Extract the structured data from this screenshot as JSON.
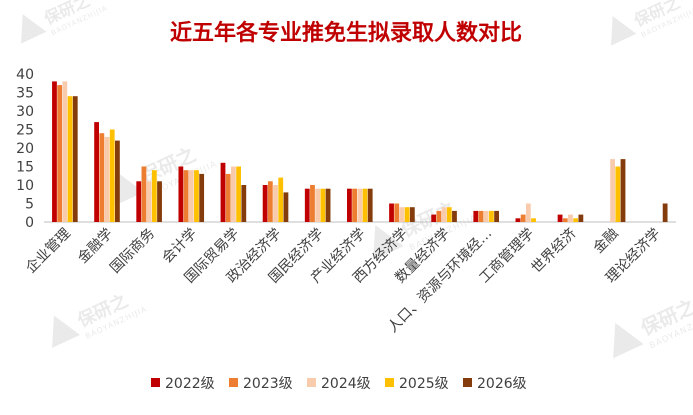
{
  "chart_data": {
    "type": "bar",
    "title": "近五年各专业推免生拟录取人数对比",
    "xlabel": "",
    "ylabel": "",
    "ylim": [
      0,
      40
    ],
    "y_ticks": [
      0,
      5,
      10,
      15,
      20,
      25,
      30,
      35,
      40
    ],
    "grid": false,
    "legend_position": "bottom",
    "categories": [
      "企业管理",
      "金融学",
      "国际商务",
      "会计学",
      "国际贸易学",
      "政治经济学",
      "国民经济学",
      "产业经济学",
      "西方经济学",
      "数量经济学",
      "人口、资源与环境经…",
      "工商管理学",
      "世界经济",
      "金融",
      "理论经济学"
    ],
    "series": [
      {
        "name": "2022级",
        "color": "#C00000",
        "values": [
          38,
          27,
          11,
          15,
          16,
          10,
          9,
          9,
          5,
          2,
          3,
          1,
          2,
          null,
          null
        ]
      },
      {
        "name": "2023级",
        "color": "#ED7D31",
        "values": [
          37,
          24,
          15,
          14,
          13,
          11,
          10,
          9,
          5,
          3,
          3,
          2,
          1,
          null,
          null
        ]
      },
      {
        "name": "2024级",
        "color": "#F8CBAD",
        "values": [
          38,
          23,
          11,
          14,
          15,
          10,
          9,
          9,
          4,
          4,
          3,
          5,
          2,
          17,
          null
        ]
      },
      {
        "name": "2025级",
        "color": "#FFC000",
        "values": [
          34,
          25,
          14,
          14,
          15,
          12,
          9,
          9,
          4,
          4,
          3,
          1,
          1,
          15,
          null
        ]
      },
      {
        "name": "2026级",
        "color": "#843C0C",
        "values": [
          34,
          22,
          11,
          13,
          10,
          8,
          9,
          9,
          4,
          3,
          3,
          null,
          2,
          17,
          5
        ]
      }
    ]
  },
  "colors": {
    "title": "#C00000",
    "axis_text": "#404040",
    "axis_line": "#BFBFBF",
    "watermark": "#D9D9D9"
  },
  "watermark": {
    "brand": "保研之",
    "brand_latin": "BAOYANZHIJIA"
  }
}
